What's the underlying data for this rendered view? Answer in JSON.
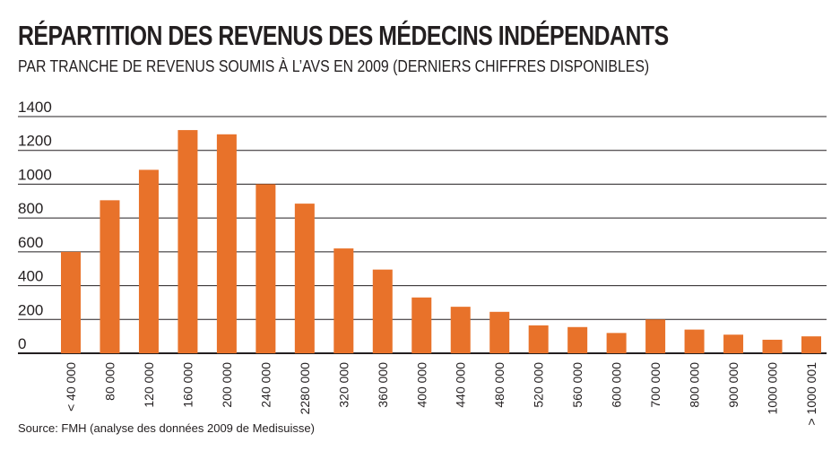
{
  "header": {
    "title": "RÉPARTITION DES REVENUS DES MÉDECINS INDÉPENDANTS",
    "subtitle": "PAR TRANCHE DE REVENUS SOUMIS À L’AVS EN 2009 (DERNIERS CHIFFRES DISPONIBLES)"
  },
  "footer": {
    "source": "Source: FMH (analyse des données 2009 de Medisuisse)"
  },
  "chart_data": {
    "type": "bar",
    "title": "RÉPARTITION DES REVENUS DES MÉDECINS INDÉPENDANTS",
    "subtitle": "PAR TRANCHE DE REVENUS SOUMIS À L’AVS EN 2009 (DERNIERS CHIFFRES DISPONIBLES)",
    "xlabel": "",
    "ylabel": "",
    "ylim": [
      0,
      1400
    ],
    "yticks": [
      0,
      200,
      400,
      600,
      800,
      1000,
      1200,
      1400
    ],
    "grid": true,
    "bar_color": "#e8722a",
    "grid_color": "#231f20",
    "categories": [
      "< 40 000",
      "80 000",
      "120 000",
      "160 000",
      "200 000",
      "240 000",
      "2280 000",
      "320 000",
      "360 000",
      "400 000",
      "440 000",
      "480 000",
      "520 000",
      "560 000",
      "600 000",
      "700 000",
      "800 000",
      "900 000",
      "1000 000",
      "> 1000 001"
    ],
    "values": [
      600,
      905,
      1085,
      1320,
      1295,
      1000,
      885,
      620,
      495,
      330,
      275,
      245,
      165,
      155,
      120,
      200,
      140,
      110,
      80,
      100
    ]
  }
}
